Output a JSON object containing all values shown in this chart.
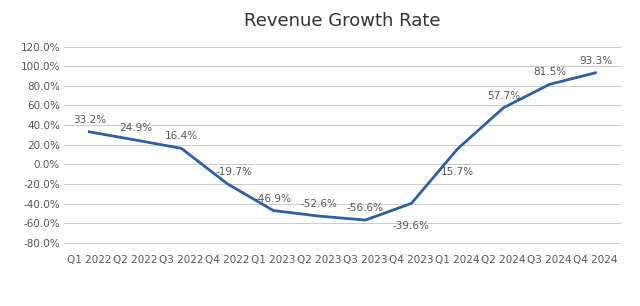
{
  "title": "Revenue Growth Rate",
  "categories": [
    "Q1 2022",
    "Q2 2022",
    "Q3 2022",
    "Q4 2022",
    "Q1 2023",
    "Q2 2023",
    "Q3 2023",
    "Q4 2023",
    "Q1 2024",
    "Q2 2024",
    "Q3 2024",
    "Q4 2024"
  ],
  "values": [
    33.2,
    24.9,
    16.4,
    -19.7,
    -46.9,
    -52.6,
    -56.6,
    -39.6,
    15.7,
    57.7,
    81.5,
    93.3
  ],
  "line_color": "#2E5FA3",
  "line_width": 2.0,
  "ylim": [
    -88,
    130
  ],
  "yticks": [
    -80,
    -60,
    -40,
    -20,
    0,
    20,
    40,
    60,
    80,
    100,
    120
  ],
  "ytick_labels": [
    "-80.0%",
    "-60.0%",
    "-40.0%",
    "-20.0%",
    "0.0%",
    "20.0%",
    "40.0%",
    "60.0%",
    "80.0%",
    "100.0%",
    "120.0%"
  ],
  "background_color": "#ffffff",
  "grid_color": "#cccccc",
  "title_fontsize": 13,
  "label_fontsize": 7.5,
  "tick_fontsize": 7.5,
  "annotation_color": "#555555"
}
